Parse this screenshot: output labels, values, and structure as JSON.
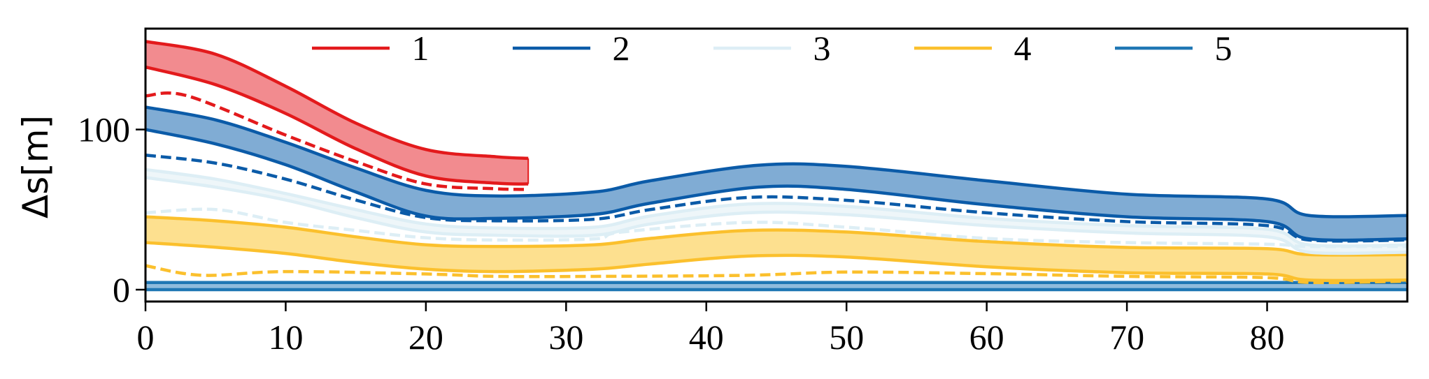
{
  "chart_data": {
    "type": "line",
    "title": "",
    "xlabel": "",
    "ylabel": "Δs[m]",
    "xlim": [
      0,
      90
    ],
    "ylim": [
      -7.4,
      163
    ],
    "xticks": [
      "0",
      "10",
      "20",
      "30",
      "40",
      "50",
      "60",
      "70",
      "80"
    ],
    "yticks": [
      "0",
      "100"
    ],
    "grid": false,
    "legend_placement": "top-center",
    "legend": [
      "1",
      "2",
      "3",
      "4",
      "5"
    ],
    "series": [
      {
        "name": "1",
        "line_color": "#e31a1c",
        "fill_color": "#f28b8f",
        "x": [
          0,
          5,
          10,
          15,
          20,
          25,
          27.3
        ],
        "upper": [
          155,
          147,
          127,
          104,
          87.5,
          83,
          82
        ],
        "lower": [
          139,
          128,
          110,
          88,
          71,
          66.5,
          66
        ],
        "dashed_x": [
          0,
          3,
          10,
          15,
          20,
          25,
          27.3
        ],
        "dashed": [
          121,
          121,
          96.5,
          80,
          66,
          63,
          62.6
        ]
      },
      {
        "name": "2",
        "line_color": "#0b5ba8",
        "fill_color": "#80acd4",
        "x": [
          0,
          5,
          10,
          15,
          20,
          25,
          32,
          36,
          43.7,
          50,
          60,
          70,
          80,
          83,
          90
        ],
        "upper": [
          114,
          106,
          92,
          76,
          62,
          58.5,
          61,
          68,
          77.7,
          77,
          68,
          59.6,
          56.6,
          46.3,
          46.3
        ],
        "lower": [
          100,
          91,
          78,
          61,
          46,
          44.5,
          47,
          54,
          64,
          62.6,
          53,
          45.5,
          42.5,
          31.7,
          31.7
        ],
        "dashed_x": [
          0,
          5,
          10,
          15,
          20,
          25,
          32,
          36,
          43,
          50,
          60,
          70,
          80,
          83,
          90
        ],
        "dashed": [
          84,
          79,
          69,
          56,
          45,
          43,
          44,
          50,
          57.6,
          55.8,
          48,
          42.5,
          40,
          31,
          31
        ]
      },
      {
        "name": "3",
        "line_color": "#ddeef5",
        "fill_color": "#eef6f9",
        "x": [
          0,
          5,
          10,
          15,
          20,
          25,
          32,
          36,
          43,
          50,
          60,
          70,
          80,
          83,
          90
        ],
        "upper": [
          75,
          69,
          60,
          50,
          41,
          38.5,
          39,
          46,
          53.5,
          52,
          44.5,
          40,
          37.7,
          28,
          28
        ],
        "lower": [
          70,
          64,
          56,
          45,
          36,
          34,
          34,
          41,
          48,
          46.8,
          40,
          35.4,
          33,
          23.4,
          23.4
        ],
        "dashed_x": [
          0,
          5,
          10,
          15,
          20,
          25,
          32,
          34,
          43,
          50,
          60,
          70,
          80,
          83,
          90
        ],
        "dashed": [
          48,
          50,
          42,
          37,
          32.4,
          31,
          31.7,
          36,
          42,
          39,
          32,
          29.4,
          28.4,
          27,
          27
        ]
      },
      {
        "name": "4",
        "line_color": "#fbc02d",
        "fill_color": "#fde08f",
        "x": [
          0,
          5,
          10,
          15,
          20,
          25,
          32,
          36,
          43,
          50,
          60,
          70,
          80,
          83,
          90
        ],
        "upper": [
          45.5,
          43,
          39,
          33,
          28,
          27,
          28,
          32,
          37,
          36,
          30,
          26.4,
          25.6,
          21.9,
          21.9
        ],
        "lower": [
          29.4,
          26.5,
          22.6,
          17,
          12.8,
          11.3,
          12.8,
          16,
          21,
          20.4,
          14.3,
          10.6,
          9.8,
          6,
          6
        ],
        "dashed_x": [
          0,
          4,
          10,
          20,
          25,
          32,
          43,
          50,
          60,
          70,
          80,
          83,
          90
        ],
        "dashed": [
          15,
          9,
          11.3,
          9.8,
          8.3,
          8.3,
          9,
          11,
          10,
          8.3,
          7.5,
          4.5,
          5.3
        ]
      },
      {
        "name": "5",
        "line_color": "#1f77b4",
        "fill_color": "#8fbbdc",
        "x": [
          0,
          90
        ],
        "upper": [
          4.5,
          4.5
        ],
        "lower": [
          0,
          0
        ],
        "dashed_x": [],
        "dashed": []
      }
    ]
  }
}
